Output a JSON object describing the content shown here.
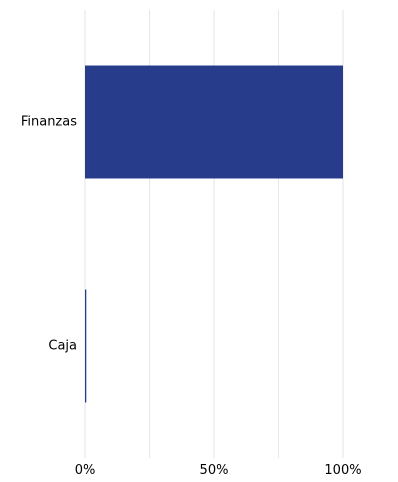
{
  "chart_data": {
    "type": "bar",
    "orientation": "horizontal",
    "title": "",
    "xlabel": "",
    "ylabel": "",
    "categories": [
      "Finanzas",
      "Caja"
    ],
    "values": [
      100,
      0.5
    ],
    "xlim": [
      0,
      100
    ],
    "x_ticks": [
      0,
      50,
      100
    ],
    "x_tick_labels": [
      "0%",
      "50%",
      "100%"
    ],
    "grid": "vertical",
    "colors": {
      "bar": "#283c8c",
      "grid": "#e6e6e6"
    }
  }
}
